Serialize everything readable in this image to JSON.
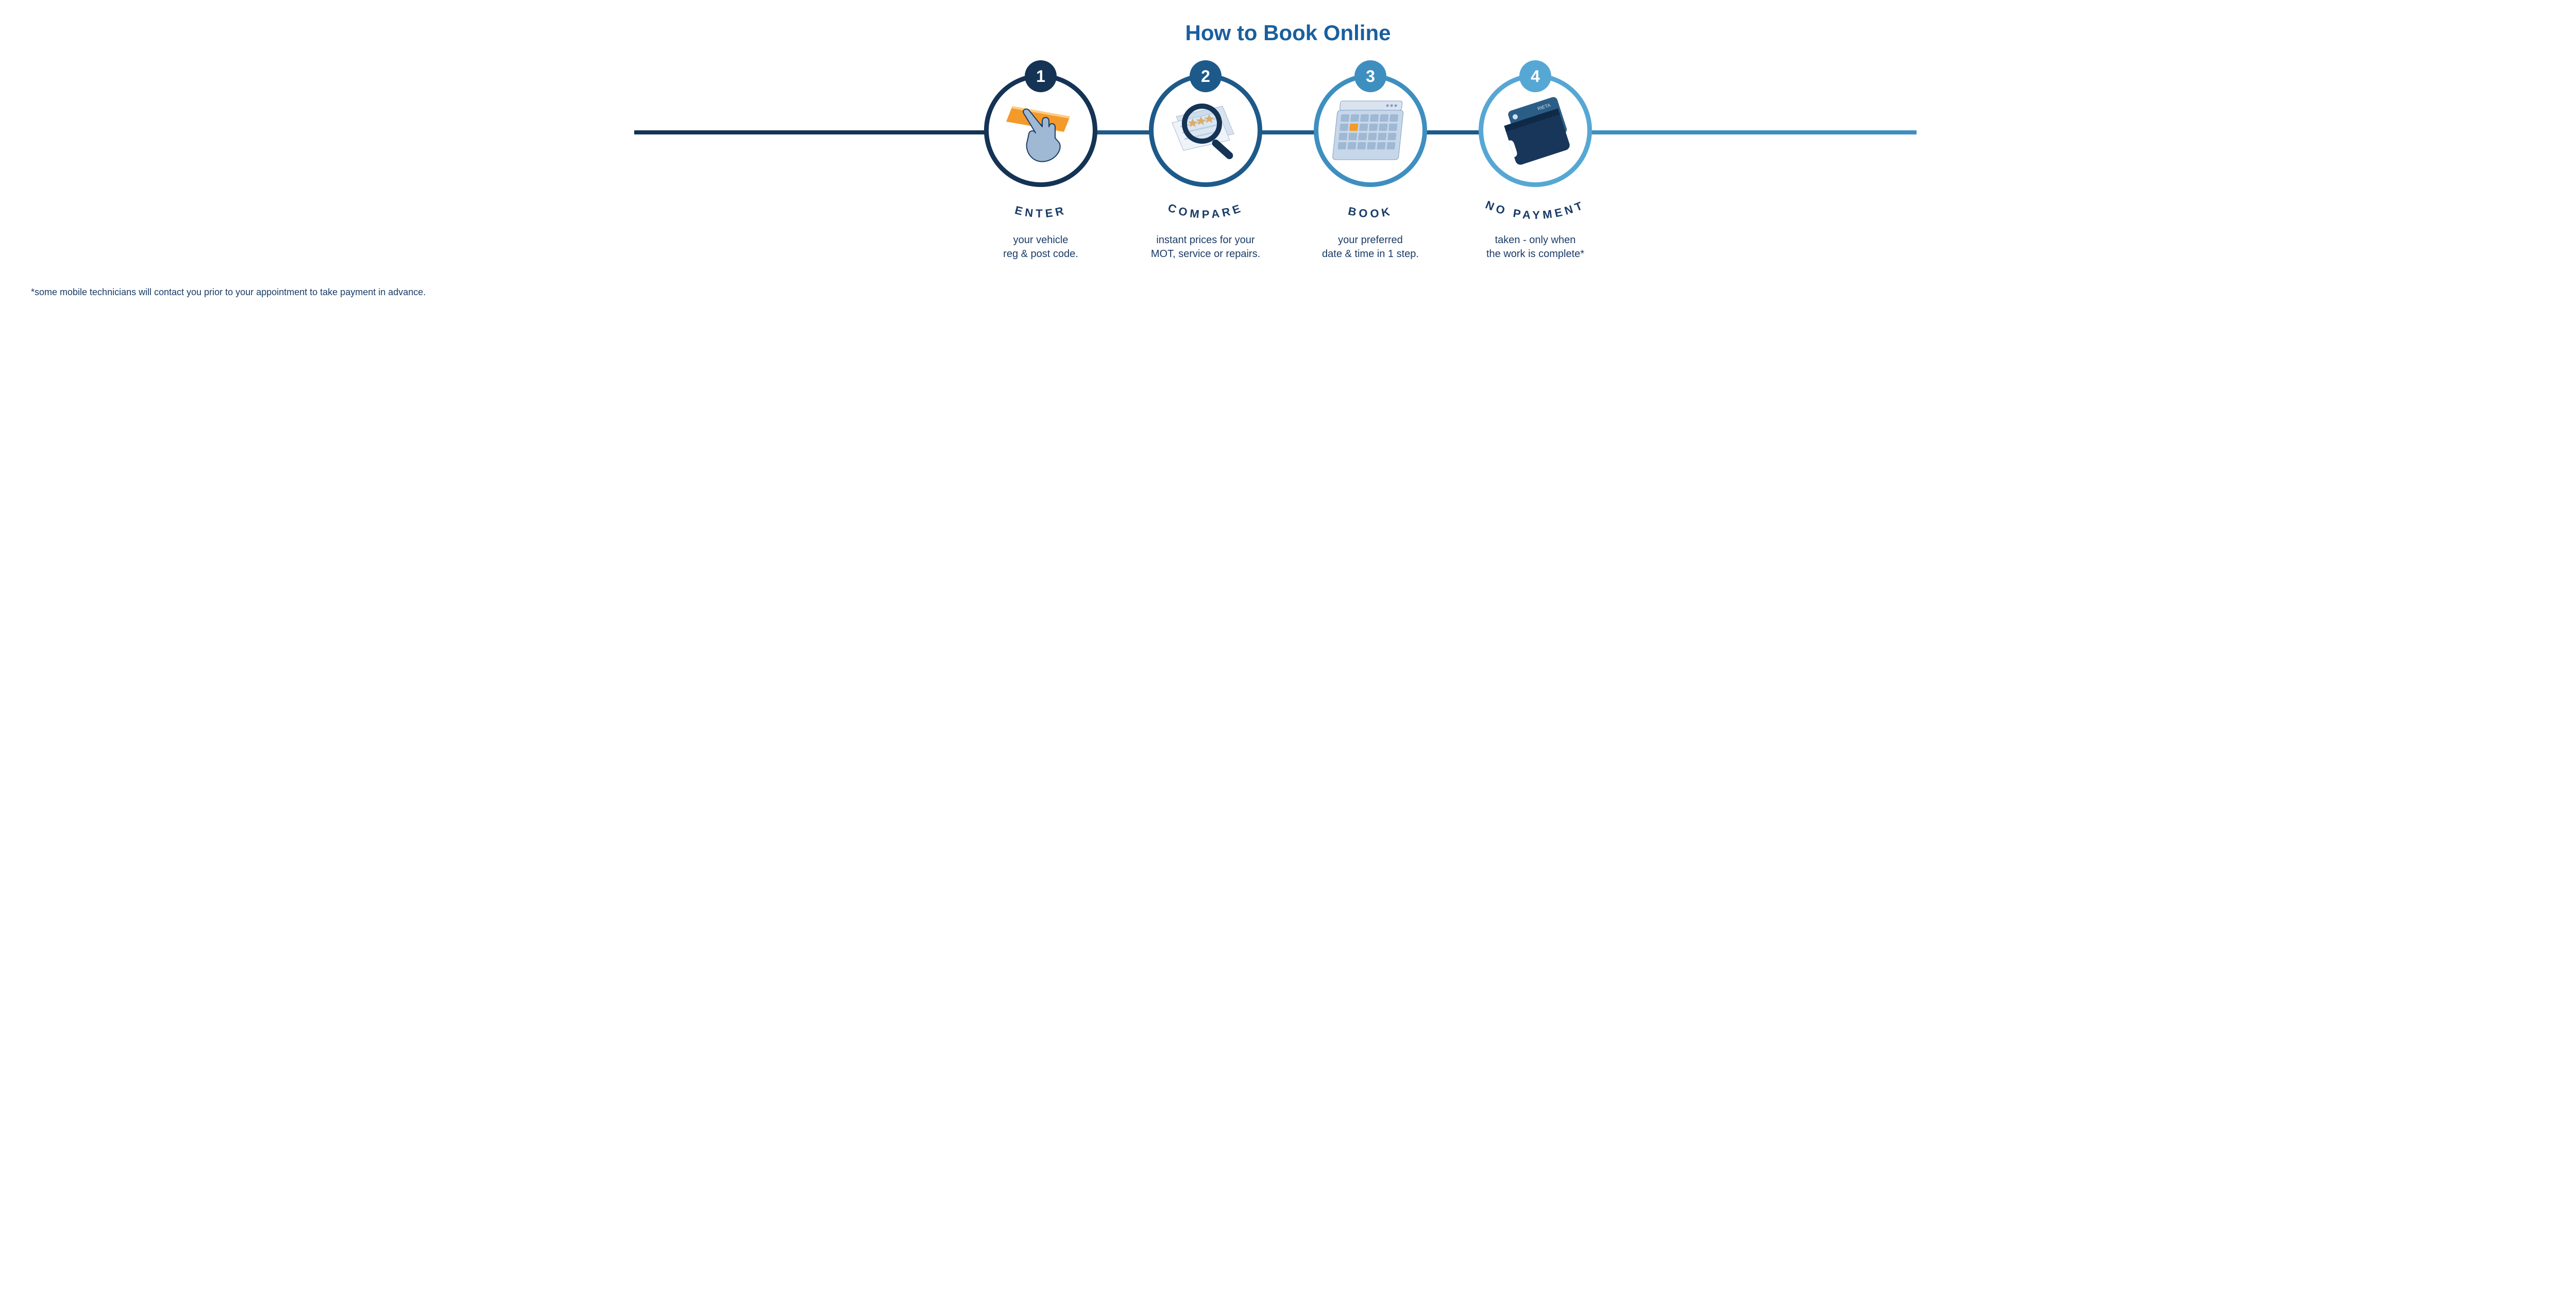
{
  "title": "How to Book Online",
  "title_color": "#1a5f9e",
  "text_color": "#1a3b66",
  "accent_orange": "#f39a2b",
  "background": "#ffffff",
  "circle_border_width": 9,
  "connector_height": 8,
  "connectors": [
    {
      "color": "#143355",
      "left_pct": 24,
      "width_pct": 17
    },
    {
      "color": "#1d5a8a",
      "left_pct": 41,
      "width_pct": 17
    },
    {
      "color": "#3e8fc0",
      "left_pct": 58,
      "width_pct": 17
    }
  ],
  "steps": [
    {
      "num": "1",
      "badge_color": "#143355",
      "ring_color": "#143355",
      "label": "ENTER",
      "desc_line1": "your vehicle",
      "desc_line2": "reg & post code."
    },
    {
      "num": "2",
      "badge_color": "#1d5a8a",
      "ring_color": "#1d5a8a",
      "label": "COMPARE",
      "desc_line1": "instant prices for your",
      "desc_line2": "MOT, service or repairs."
    },
    {
      "num": "3",
      "badge_color": "#3e8fc0",
      "ring_color": "#3e8fc0",
      "label": "BOOK",
      "desc_line1": "your preferred",
      "desc_line2": "date & time in 1 step."
    },
    {
      "num": "4",
      "badge_color": "#56a7d4",
      "ring_color": "#56a7d4",
      "label": "NO PAYMENT",
      "desc_line1": "taken - only when",
      "desc_line2": "the work is complete*"
    }
  ],
  "footnote": "*some mobile technicians will contact you prior to your appointment to take payment in advance.",
  "card_brand": "RIETA"
}
